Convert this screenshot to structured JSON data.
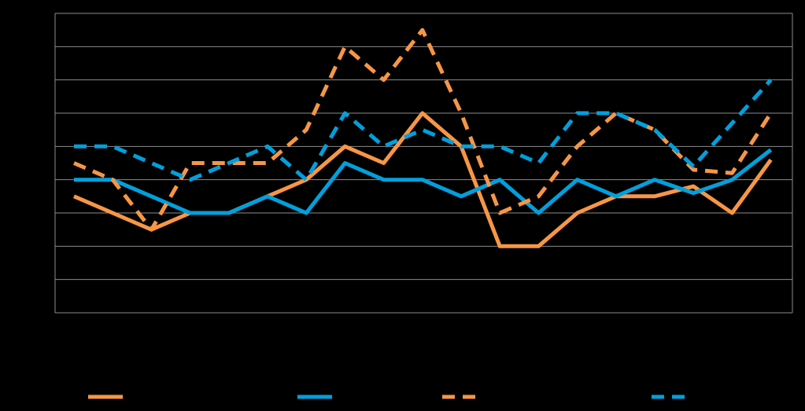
{
  "chart_data": {
    "type": "line",
    "x": [
      1,
      2,
      3,
      4,
      5,
      6,
      7,
      8,
      9,
      10,
      11,
      12,
      13,
      14,
      15,
      16,
      17,
      18,
      19,
      20
    ],
    "ylim": [
      0,
      9
    ],
    "y_gridlines": 9,
    "grid": true,
    "legend_placement": "bottom",
    "background": "#000000",
    "grid_color": "#8c8c8c",
    "series": [
      {
        "color": "#f79646",
        "style": "solid",
        "values": [
          3.5,
          3.0,
          2.5,
          3.0,
          3.0,
          3.5,
          4.0,
          5.0,
          4.5,
          6.0,
          5.0,
          2.0,
          2.0,
          3.0,
          3.5,
          3.5,
          3.8,
          3.0,
          4.6,
          null
        ]
      },
      {
        "color": "#00a0dc",
        "style": "solid",
        "values": [
          4.0,
          4.0,
          3.5,
          3.0,
          3.0,
          3.5,
          3.0,
          4.5,
          4.0,
          4.0,
          3.5,
          4.0,
          3.0,
          4.0,
          3.5,
          4.0,
          3.6,
          4.0,
          4.9,
          null
        ]
      },
      {
        "color": "#f79646",
        "style": "dashed",
        "values": [
          4.5,
          4.0,
          2.5,
          4.5,
          4.5,
          4.5,
          5.5,
          8.0,
          7.0,
          8.5,
          6.0,
          3.0,
          3.5,
          5.0,
          6.0,
          5.5,
          4.3,
          4.2,
          6.0,
          null
        ]
      },
      {
        "color": "#00a0dc",
        "style": "dashed",
        "values": [
          5.0,
          5.0,
          4.5,
          4.0,
          4.5,
          5.0,
          4.0,
          6.0,
          5.0,
          5.5,
          5.0,
          5.0,
          4.5,
          6.0,
          6.0,
          5.5,
          4.4,
          5.7,
          7.0,
          null
        ]
      }
    ]
  }
}
